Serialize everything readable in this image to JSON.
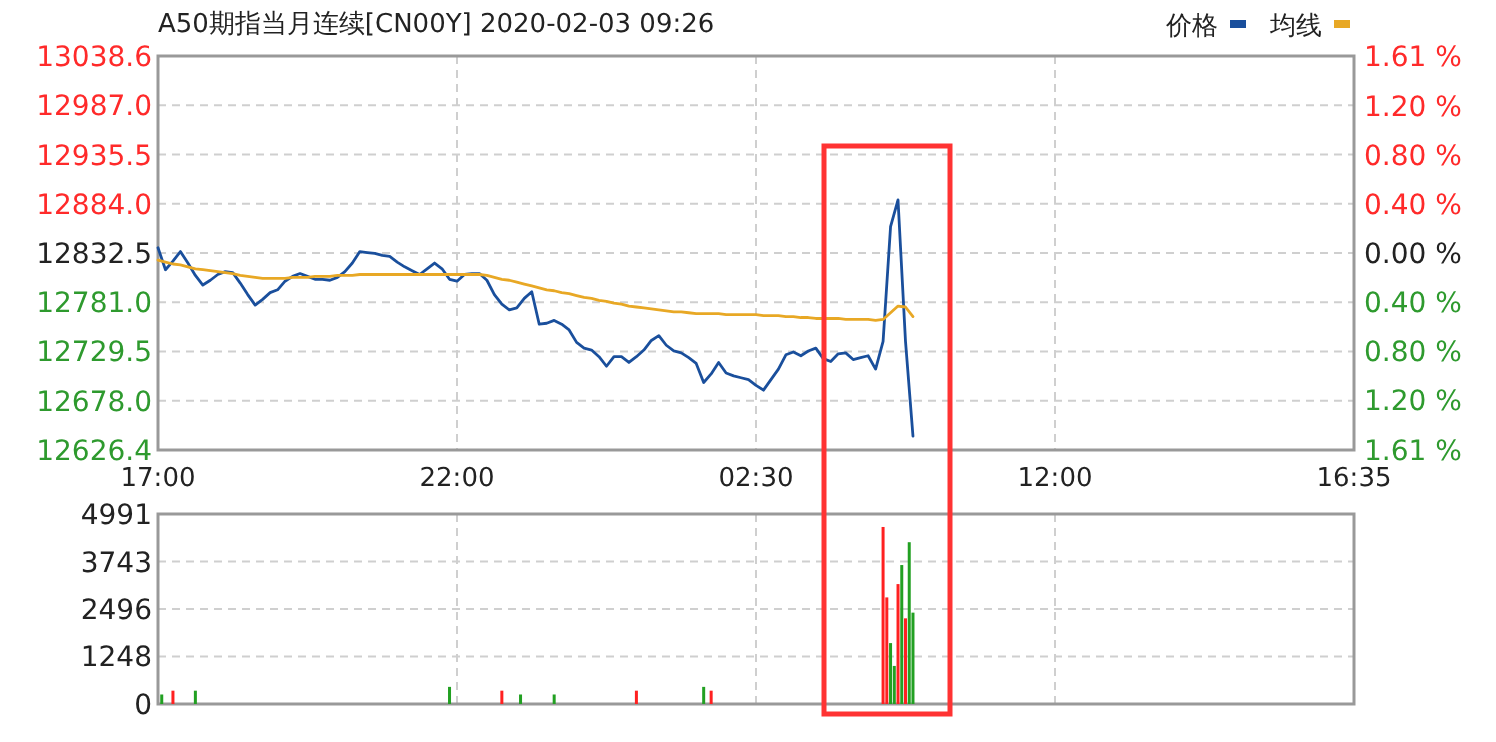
{
  "chart_data": [
    {
      "type": "line",
      "title": "A50期指当月连续[CN00Y] 2020-02-03 09:26",
      "categories": [
        "17:00",
        null,
        null,
        null,
        null,
        null,
        null,
        null,
        null,
        null,
        null,
        null,
        null,
        null,
        null,
        null,
        null,
        null,
        null,
        null,
        null,
        null,
        null,
        null,
        null,
        null,
        null,
        null,
        null,
        null,
        null,
        null,
        null,
        null,
        null,
        null,
        null,
        null,
        null,
        null,
        "22:00",
        null,
        null,
        null,
        null,
        null,
        null,
        null,
        null,
        null,
        null,
        null,
        null,
        null,
        null,
        null,
        null,
        null,
        null,
        null,
        null,
        null,
        null,
        null,
        null,
        null,
        null,
        null,
        null,
        null,
        null,
        null,
        null,
        null,
        null,
        null,
        null,
        null,
        null,
        null,
        "02:30",
        null,
        null,
        null,
        null,
        null,
        null,
        null,
        null,
        null,
        null,
        null,
        null,
        null,
        null,
        null,
        null,
        null,
        null,
        null,
        null,
        null,
        null,
        null,
        null,
        null,
        null,
        null,
        null,
        null,
        null,
        null,
        null,
        null,
        null,
        null,
        null,
        null,
        null,
        null,
        "12:00",
        null,
        null,
        null,
        null,
        null,
        null,
        null,
        null,
        null,
        null,
        null,
        null,
        null,
        null,
        null,
        null,
        null,
        null,
        null,
        null,
        null,
        null,
        null,
        null,
        null,
        null,
        null,
        null,
        null,
        null,
        null,
        null,
        null,
        null,
        null,
        null,
        null,
        null,
        null,
        "16:35"
      ],
      "ylim": [
        12626.4,
        13038.6
      ],
      "yticks": [
        13038.6,
        {
          "value": 12987,
          "label": "12987.0"
        },
        12935.5,
        {
          "value": 12884,
          "label": "12884.0"
        },
        12832.5,
        {
          "value": 12781,
          "label": "12781.0"
        },
        12729.5,
        {
          "value": 12678,
          "label": "12678.0"
        },
        12626.4
      ],
      "y2lim": [
        -1.61,
        1.61
      ],
      "y2ticks": [
        {
          "value": 1.61,
          "label": "1.61 %"
        },
        {
          "value": 1.2,
          "label": "1.20 %"
        },
        {
          "value": 0.8,
          "label": "0.80 %"
        },
        {
          "value": 0.4,
          "label": "0.40 %"
        },
        {
          "value": 0,
          "label": "0.00 %"
        },
        {
          "value": -0.4,
          "label": "0.40 %"
        },
        {
          "value": -0.8,
          "label": "0.80 %"
        },
        {
          "value": -1.2,
          "label": "1.20 %"
        },
        {
          "value": -1.61,
          "label": "1.61 %"
        }
      ],
      "grid": true,
      "legend": "top right",
      "series": [
        {
          "name": "价格",
          "color": "#1a4f9c",
          "values": [
            12838,
            12815,
            12824,
            12834,
            12822,
            12809,
            12799,
            12804,
            12810,
            12813,
            12812,
            12801,
            12789,
            12778,
            12784,
            12791,
            12794,
            12803,
            12808,
            12811,
            12808,
            12805,
            12805,
            12804,
            12807,
            12813,
            12822,
            12834,
            12833,
            12832,
            12830,
            12829,
            12823,
            12818,
            12814,
            12810,
            12816,
            12822,
            12816,
            12805,
            12803,
            12810,
            12811,
            12811,
            12804,
            12789,
            12779,
            12773,
            12775,
            12785,
            12792,
            12758,
            12759,
            12762,
            12758,
            12752,
            12739,
            12733,
            12731,
            12724,
            12714,
            12724,
            12724,
            12718,
            12724,
            12731,
            12741,
            12746,
            12736,
            12730,
            12728,
            12723,
            12717,
            12697,
            12706,
            12718,
            12707,
            12704,
            12702,
            12700,
            12694,
            12689,
            12700,
            12711,
            12726,
            12729,
            12725,
            12730,
            12733,
            12722,
            12719,
            12727,
            12728,
            12721,
            12723,
            12725,
            12711,
            12740,
            12860,
            12888,
            12740,
            12641,
            null,
            null,
            null,
            null,
            null,
            null,
            null,
            null,
            null,
            null,
            null,
            null,
            null,
            null,
            null,
            null,
            null,
            null,
            null,
            null,
            null,
            null,
            null,
            null,
            null,
            null,
            null,
            null,
            null,
            null,
            null,
            null,
            null,
            null,
            null,
            null,
            null,
            null,
            null,
            null,
            null,
            null,
            null,
            null,
            null,
            null,
            null,
            null,
            null,
            null,
            null,
            null,
            null,
            null,
            null,
            null,
            null,
            null,
            null
          ]
        },
        {
          "name": "均线",
          "color": "#e8a825",
          "values": [
            12825,
            12823,
            12821,
            12820,
            12818,
            12816,
            12815,
            12814,
            12813,
            12812,
            12811,
            12809,
            12808,
            12807,
            12806,
            12806,
            12806,
            12806,
            12807,
            12807,
            12807,
            12808,
            12808,
            12808,
            12809,
            12809,
            12809,
            12810,
            12810,
            12810,
            12810,
            12810,
            12810,
            12810,
            12810,
            12810,
            12810,
            12810,
            12810,
            12810,
            12810,
            12810,
            12810,
            12810,
            12809,
            12807,
            12805,
            12804,
            12802,
            12800,
            12798,
            12796,
            12794,
            12793,
            12791,
            12790,
            12788,
            12786,
            12785,
            12783,
            12782,
            12780,
            12779,
            12777,
            12776,
            12775,
            12774,
            12773,
            12772,
            12771,
            12771,
            12770,
            12769,
            12769,
            12769,
            12769,
            12768,
            12768,
            12768,
            12768,
            12768,
            12767,
            12767,
            12767,
            12766,
            12766,
            12765,
            12765,
            12764,
            12764,
            12764,
            12764,
            12763,
            12763,
            12763,
            12763,
            12762,
            12763,
            12770,
            12777,
            12776,
            12766,
            null,
            null,
            null,
            null,
            null,
            null,
            null,
            null,
            null,
            null,
            null,
            null,
            null,
            null,
            null,
            null,
            null,
            null,
            null,
            null,
            null,
            null,
            null,
            null,
            null,
            null,
            null,
            null,
            null,
            null,
            null,
            null,
            null,
            null,
            null,
            null,
            null,
            null,
            null,
            null,
            null,
            null,
            null,
            null,
            null,
            null,
            null,
            null,
            null,
            null,
            null,
            null,
            null,
            null,
            null,
            null,
            null,
            null,
            null
          ]
        }
      ]
    },
    {
      "type": "bar",
      "tick_labels": "y",
      "categories": [
        null,
        null,
        null,
        null,
        null,
        null,
        null,
        null,
        null,
        null,
        null,
        null,
        null,
        null,
        null,
        null,
        null,
        null,
        null,
        null,
        null,
        null,
        null,
        null,
        null,
        null,
        null,
        null,
        null,
        null,
        null,
        null,
        null,
        null,
        null,
        null,
        null,
        null,
        null,
        null,
        null,
        null,
        null,
        null,
        null,
        null,
        null,
        null,
        null,
        null,
        null,
        null,
        null,
        null,
        null,
        null,
        null,
        null,
        null,
        null,
        null,
        null,
        null,
        null,
        null,
        null,
        null,
        null,
        null,
        null,
        null,
        null,
        null,
        null,
        null,
        null,
        null,
        null,
        null,
        null,
        null,
        null,
        null,
        null,
        null,
        null,
        null,
        null,
        null,
        null,
        null,
        null,
        null,
        null,
        null,
        null,
        null,
        null,
        null,
        null,
        null,
        null,
        null,
        null,
        null,
        null,
        null,
        null,
        null,
        null,
        null,
        null,
        null,
        null,
        null,
        null,
        null,
        null,
        null,
        null,
        null,
        null,
        null,
        null,
        null,
        null,
        null,
        null,
        null,
        null,
        null,
        null,
        null,
        null,
        null,
        null,
        null,
        null,
        null,
        null,
        null,
        null,
        null,
        null,
        null,
        null,
        null,
        null,
        null,
        null,
        null,
        null,
        null,
        null,
        null,
        null,
        null,
        null,
        null,
        null,
        null,
        null,
        null,
        null,
        null,
        null,
        null,
        null,
        null,
        null,
        null,
        null,
        null,
        null,
        null,
        null,
        null,
        null,
        null,
        null,
        null,
        null,
        null,
        null,
        null,
        null,
        null,
        null,
        null,
        null,
        null,
        null,
        null,
        null,
        null,
        null,
        null,
        null,
        null,
        null,
        null,
        null,
        null,
        null,
        null,
        null,
        null,
        null,
        null,
        null,
        null,
        null,
        null,
        null,
        null,
        null,
        null,
        null,
        null,
        null,
        null,
        null,
        null,
        null,
        null,
        null,
        null,
        null,
        null,
        null,
        null,
        null,
        null,
        null,
        null,
        null,
        null,
        null,
        null,
        null,
        null,
        null,
        null,
        null,
        null,
        null,
        null,
        null,
        null,
        null,
        null,
        null,
        null,
        null,
        null,
        null,
        null,
        null,
        null,
        null,
        null,
        null,
        null,
        null,
        null,
        null,
        null,
        null,
        null,
        null,
        null,
        null,
        null,
        null,
        null,
        null,
        null,
        null,
        null,
        null,
        null,
        null,
        null,
        null,
        null,
        null,
        null,
        null,
        null,
        null,
        null,
        null,
        null,
        null,
        null,
        null,
        null,
        null,
        null,
        null,
        null,
        null,
        null,
        null,
        null,
        null,
        null,
        null,
        null,
        null,
        null,
        null,
        null,
        null,
        null,
        null,
        null,
        null,
        null,
        null,
        null
      ],
      "ylim": [
        0,
        4991
      ],
      "yticks": [
        0,
        1248,
        2496,
        3743,
        4991
      ],
      "grid": true,
      "values": [
        null,
        250,
        null,
        null,
        350,
        null,
        null,
        null,
        null,
        null,
        350,
        null,
        null,
        null,
        null,
        null,
        null,
        null,
        null,
        null,
        null,
        null,
        null,
        null,
        null,
        null,
        null,
        null,
        null,
        null,
        null,
        null,
        null,
        null,
        null,
        null,
        null,
        null,
        null,
        null,
        null,
        null,
        null,
        null,
        null,
        null,
        null,
        null,
        null,
        null,
        null,
        null,
        null,
        null,
        null,
        null,
        null,
        null,
        null,
        null,
        null,
        null,
        null,
        null,
        null,
        null,
        null,
        null,
        null,
        null,
        null,
        null,
        null,
        null,
        null,
        null,
        null,
        null,
        450,
        null,
        null,
        null,
        null,
        null,
        null,
        null,
        null,
        null,
        null,
        null,
        null,
        null,
        350,
        null,
        null,
        null,
        null,
        250,
        null,
        null,
        null,
        null,
        null,
        null,
        null,
        null,
        250,
        null,
        null,
        null,
        null,
        null,
        null,
        null,
        null,
        null,
        null,
        null,
        null,
        null,
        null,
        null,
        null,
        null,
        null,
        null,
        null,
        null,
        350,
        null,
        null,
        null,
        null,
        null,
        null,
        null,
        null,
        null,
        null,
        null,
        null,
        null,
        null,
        null,
        null,
        null,
        450,
        null,
        350,
        null,
        null,
        null,
        null,
        null,
        null,
        null,
        null,
        null,
        null,
        null,
        null,
        null,
        null,
        null,
        null,
        null,
        null,
        null,
        null,
        null,
        null,
        null,
        null,
        null,
        null,
        null,
        null,
        null,
        null,
        null,
        null,
        null,
        null,
        null,
        null,
        null,
        null,
        null,
        null,
        null,
        null,
        null,
        null,
        null,
        4650,
        2800,
        1600,
        1000,
        3150,
        3650,
        2250,
        4250,
        2400,
        null,
        null,
        null,
        null,
        null,
        null,
        null,
        null,
        null,
        null,
        null,
        null,
        null,
        null,
        null,
        null,
        null,
        null,
        null,
        null,
        null,
        null,
        null,
        null,
        null,
        null,
        null,
        null,
        null,
        null,
        null,
        null,
        null,
        null,
        null,
        null,
        null,
        null,
        null,
        null,
        null,
        null,
        null,
        null,
        null,
        null,
        null,
        null,
        null,
        null,
        null,
        null,
        null,
        null,
        null,
        null,
        null,
        null,
        null,
        null,
        null,
        null,
        null,
        null,
        null,
        null,
        null,
        null,
        null,
        null,
        null,
        null,
        null,
        null,
        null,
        null,
        null,
        null,
        null,
        null,
        null,
        null,
        null,
        null,
        null,
        null,
        null,
        null,
        null,
        null,
        null,
        null,
        null,
        null,
        null,
        null,
        null,
        null,
        null,
        null,
        null,
        null,
        null,
        null,
        null,
        null,
        null,
        null,
        null,
        null,
        null,
        null,
        null,
        null,
        null,
        null,
        null,
        null
      ],
      "colors": [
        null,
        "#22a022",
        null,
        null,
        "#ff2020",
        null,
        null,
        null,
        null,
        null,
        "#22a022",
        null,
        null,
        null,
        null,
        null,
        null,
        null,
        null,
        null,
        null,
        null,
        null,
        null,
        null,
        null,
        null,
        null,
        null,
        null,
        null,
        null,
        null,
        null,
        null,
        null,
        null,
        null,
        null,
        null,
        null,
        null,
        null,
        null,
        null,
        null,
        null,
        null,
        null,
        null,
        null,
        null,
        null,
        null,
        null,
        null,
        null,
        null,
        null,
        null,
        null,
        null,
        null,
        null,
        null,
        null,
        null,
        null,
        null,
        null,
        null,
        null,
        null,
        null,
        null,
        null,
        null,
        null,
        "#22a022",
        null,
        null,
        null,
        null,
        null,
        null,
        null,
        null,
        null,
        null,
        null,
        null,
        null,
        "#ff2020",
        null,
        null,
        null,
        null,
        "#22a022",
        null,
        null,
        null,
        null,
        null,
        null,
        null,
        null,
        "#22a022",
        null,
        null,
        null,
        null,
        null,
        null,
        null,
        null,
        null,
        null,
        null,
        null,
        null,
        null,
        null,
        null,
        null,
        null,
        null,
        null,
        null,
        "#ff2020",
        null,
        null,
        null,
        null,
        null,
        null,
        null,
        null,
        null,
        null,
        null,
        null,
        null,
        null,
        null,
        null,
        null,
        "#22a022",
        null,
        "#ff2020",
        null,
        null,
        null,
        null,
        null,
        null,
        null,
        null,
        null,
        null,
        null,
        null,
        null,
        null,
        null,
        null,
        null,
        null,
        null,
        null,
        null,
        null,
        null,
        null,
        null,
        null,
        null,
        null,
        null,
        null,
        null,
        null,
        null,
        null,
        null,
        null,
        null,
        null,
        null,
        null,
        null,
        null,
        null,
        null,
        null,
        "#ff2020",
        "#ff2020",
        "#22a022",
        "#22a022",
        "#ff2020",
        "#22a022",
        "#ff2020",
        "#22a022",
        "#22a022",
        null,
        null,
        null,
        null,
        null,
        null,
        null,
        null,
        null,
        null,
        null,
        null,
        null,
        null,
        null,
        null,
        null,
        null,
        null,
        null,
        null,
        null,
        null,
        null,
        null,
        null,
        null,
        null,
        null,
        null,
        null,
        null,
        null,
        null,
        null,
        null,
        null,
        null,
        null,
        null,
        null,
        null,
        null,
        null,
        null,
        null,
        null,
        null,
        null,
        null,
        null,
        null,
        null,
        null,
        null,
        null,
        null,
        null,
        null,
        null,
        null,
        null,
        null,
        null,
        null,
        null,
        null,
        null,
        null,
        null,
        null,
        null,
        null,
        null,
        null,
        null,
        null,
        null,
        null,
        null,
        null,
        null,
        null,
        null,
        null,
        null,
        null,
        null,
        null,
        null,
        null,
        null,
        null,
        null,
        null,
        null,
        null,
        null,
        null,
        null,
        null,
        null,
        null,
        null,
        null,
        null,
        null,
        null,
        null,
        null,
        null,
        null,
        null,
        null,
        null,
        null,
        null,
        null
      ]
    }
  ]
}
